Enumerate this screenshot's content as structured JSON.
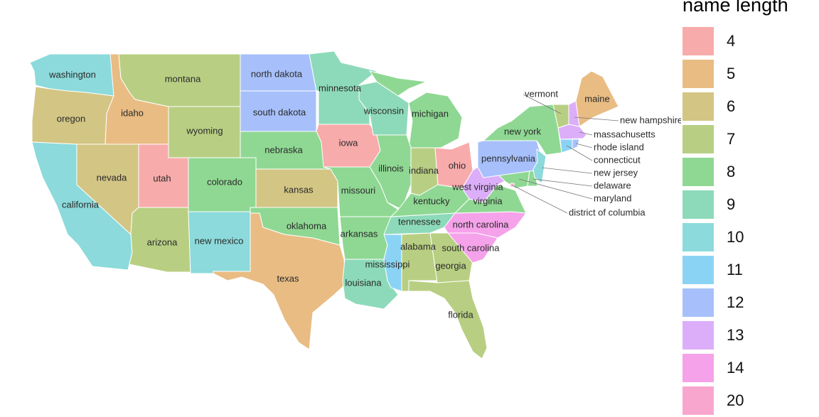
{
  "legend": {
    "title": "name length",
    "keys": [
      {
        "label": "4",
        "color": "#F8ABAB"
      },
      {
        "label": "5",
        "color": "#E9BC83"
      },
      {
        "label": "6",
        "color": "#D3C584"
      },
      {
        "label": "7",
        "color": "#B8CF83"
      },
      {
        "label": "8",
        "color": "#8FD893"
      },
      {
        "label": "9",
        "color": "#8DDABA"
      },
      {
        "label": "10",
        "color": "#8CDADB"
      },
      {
        "label": "11",
        "color": "#8BD3F5"
      },
      {
        "label": "12",
        "color": "#A7C0FB"
      },
      {
        "label": "13",
        "color": "#DCAEF9"
      },
      {
        "label": "14",
        "color": "#F5A2EA"
      },
      {
        "label": "20",
        "color": "#F9A6CF"
      }
    ]
  },
  "states": [
    {
      "name": "washington",
      "length": 10
    },
    {
      "name": "oregon",
      "length": 6
    },
    {
      "name": "california",
      "length": 10
    },
    {
      "name": "nevada",
      "length": 6
    },
    {
      "name": "idaho",
      "length": 5
    },
    {
      "name": "montana",
      "length": 7
    },
    {
      "name": "wyoming",
      "length": 7
    },
    {
      "name": "utah",
      "length": 4
    },
    {
      "name": "arizona",
      "length": 7
    },
    {
      "name": "colorado",
      "length": 8
    },
    {
      "name": "new mexico",
      "length": 10
    },
    {
      "name": "north dakota",
      "length": 12
    },
    {
      "name": "south dakota",
      "length": 12
    },
    {
      "name": "nebraska",
      "length": 8
    },
    {
      "name": "kansas",
      "length": 6
    },
    {
      "name": "oklahoma",
      "length": 8
    },
    {
      "name": "texas",
      "length": 5
    },
    {
      "name": "minnesota",
      "length": 9
    },
    {
      "name": "iowa",
      "length": 4
    },
    {
      "name": "wisconsin",
      "length": 9
    },
    {
      "name": "michigan",
      "length": 8
    },
    {
      "name": "illinois",
      "length": 8
    },
    {
      "name": "indiana",
      "length": 7
    },
    {
      "name": "ohio",
      "length": 4
    },
    {
      "name": "missouri",
      "length": 8
    },
    {
      "name": "arkansas",
      "length": 8
    },
    {
      "name": "louisiana",
      "length": 9
    },
    {
      "name": "mississippi",
      "length": 11
    },
    {
      "name": "alabama",
      "length": 7
    },
    {
      "name": "georgia",
      "length": 7
    },
    {
      "name": "florida",
      "length": 7
    },
    {
      "name": "tennessee",
      "length": 9
    },
    {
      "name": "kentucky",
      "length": 8
    },
    {
      "name": "north carolina",
      "length": 14
    },
    {
      "name": "south carolina",
      "length": 14
    },
    {
      "name": "virginia",
      "length": 8
    },
    {
      "name": "west virginia",
      "length": 13
    },
    {
      "name": "maryland",
      "length": 8
    },
    {
      "name": "delaware",
      "length": 8
    },
    {
      "name": "district of columbia",
      "length": 20
    },
    {
      "name": "pennsylvania",
      "length": 12
    },
    {
      "name": "new jersey",
      "length": 10
    },
    {
      "name": "new york",
      "length": 8
    },
    {
      "name": "connecticut",
      "length": 11
    },
    {
      "name": "rhode island",
      "length": 12
    },
    {
      "name": "massachusetts",
      "length": 13
    },
    {
      "name": "vermont",
      "length": 7
    },
    {
      "name": "new hampshire",
      "length": 13
    },
    {
      "name": "maine",
      "length": 5
    }
  ]
}
